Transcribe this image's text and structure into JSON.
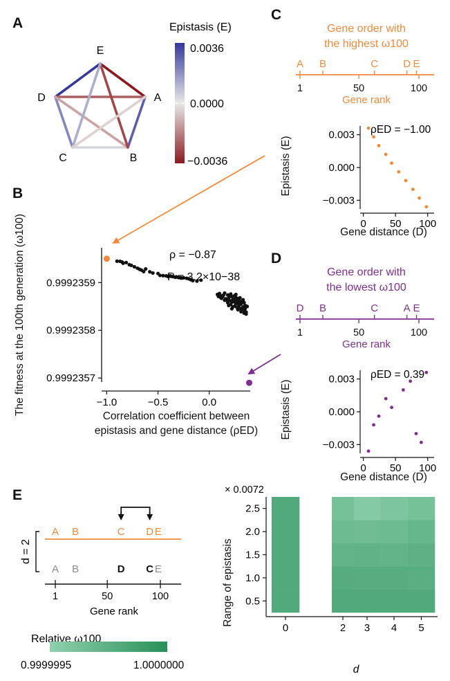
{
  "panels": {
    "A": "A",
    "B": "B",
    "C": "C",
    "D": "D",
    "E": "E"
  },
  "colors": {
    "orange": "#f08a3a",
    "purple": "#7e2f8e",
    "black": "#111111",
    "gray": "#8a8a8a",
    "epi_pos": "#34399a",
    "epi_mid": "#e8e8e8",
    "epi_neg": "#8b1a1e",
    "green_low": "#8fd1ad",
    "green_high": "#2a8f5a"
  },
  "panel_a": {
    "colorbar_title": "Epistasis (E)",
    "colorbar_ticks": [
      "0.0036",
      "0.0000",
      "−0.0036"
    ],
    "nodes": [
      "A",
      "B",
      "C",
      "D",
      "E"
    ],
    "edges": [
      {
        "from": "E",
        "to": "A",
        "E": -0.0036
      },
      {
        "from": "D",
        "to": "E",
        "E": 0.0036
      },
      {
        "from": "A",
        "to": "B",
        "E": 0.0028
      },
      {
        "from": "C",
        "to": "D",
        "E": 0.002
      },
      {
        "from": "B",
        "to": "C",
        "E": 0.0004
      },
      {
        "from": "D",
        "to": "A",
        "E": -0.0024
      },
      {
        "from": "D",
        "to": "B",
        "E": -0.0012
      },
      {
        "from": "E",
        "to": "B",
        "E": -0.0028
      },
      {
        "from": "E",
        "to": "C",
        "E": 0.0012
      },
      {
        "from": "A",
        "to": "C",
        "E": -0.0004
      }
    ]
  },
  "panel_b": {
    "ylabel": "The fitness at the 100th generation (ω100)",
    "xlabel_line1": "Correlation coefficient between",
    "xlabel_line2": "epistasis and gene distance (ρED)",
    "rho_text": "ρ = −0.87",
    "p_text": "P = 3.2×10−38",
    "xticks": [
      "−1.0",
      "−0.5",
      "0.0"
    ],
    "yticks": [
      "0.9992359",
      "0.9992358",
      "0.9992357"
    ]
  },
  "panel_c": {
    "title_line1": "Gene order with",
    "title_line2": "the highest ω100",
    "genes": [
      {
        "name": "A",
        "rank": 1
      },
      {
        "name": "B",
        "rank": 20
      },
      {
        "name": "C",
        "rank": 63
      },
      {
        "name": "D",
        "rank": 90
      },
      {
        "name": "E",
        "rank": 98
      }
    ],
    "rank_ticks": [
      "1",
      "50",
      "100"
    ],
    "rank_label": "Gene rank",
    "rho_text": "ρED = −1.00",
    "ylabel": "Epistasis (E)",
    "xlabel": "Gene distance (D)",
    "yticks": [
      "0.003",
      "0.000",
      "−0.003"
    ],
    "xticks": [
      "0",
      "50",
      "100"
    ]
  },
  "panel_d": {
    "title_line1": "Gene order with",
    "title_line2": "the lowest ω100",
    "genes": [
      {
        "name": "D",
        "rank": 1
      },
      {
        "name": "B",
        "rank": 20
      },
      {
        "name": "C",
        "rank": 63
      },
      {
        "name": "A",
        "rank": 90
      },
      {
        "name": "E",
        "rank": 98
      }
    ],
    "rank_ticks": [
      "1",
      "50",
      "100"
    ],
    "rank_label": "Gene rank",
    "rho_text": "ρED = 0.39",
    "ylabel": "Epistasis (E)",
    "xlabel": "Gene distance (D)",
    "yticks": [
      "0.003",
      "0.000",
      "−0.003"
    ],
    "xticks": [
      "0",
      "50",
      "100"
    ]
  },
  "panel_e": {
    "d_label": "d = 2",
    "top_genes": [
      {
        "name": "A",
        "rank": 1
      },
      {
        "name": "B",
        "rank": 20
      },
      {
        "name": "C",
        "rank": 63
      },
      {
        "name": "D",
        "rank": 90
      },
      {
        "name": "E",
        "rank": 98
      }
    ],
    "bottom_genes": [
      {
        "name": "A",
        "rank": 1,
        "bold": false
      },
      {
        "name": "B",
        "rank": 20,
        "bold": false
      },
      {
        "name": "D",
        "rank": 63,
        "bold": true
      },
      {
        "name": "C",
        "rank": 90,
        "bold": true
      },
      {
        "name": "E",
        "rank": 98,
        "bold": false
      }
    ],
    "rank_ticks": [
      "1",
      "50",
      "100"
    ],
    "rank_label": "Gene rank",
    "legend_title": "Relative ω100",
    "legend_min": "0.9999995",
    "legend_max": "1.0000000",
    "heatmap_multiplier": "× 0.0072",
    "heatmap_ylabel": "Range of epistasis",
    "heatmap_xlabel": "d",
    "heatmap_yticks": [
      "2.5",
      "2.0",
      "1.5",
      "1.0",
      "0.5"
    ],
    "heatmap_xticks": [
      "0",
      "2",
      "3",
      "4",
      "5"
    ]
  },
  "chart_data": [
    {
      "id": "B",
      "type": "scatter",
      "xlim": [
        -1.05,
        0.4
      ],
      "ylim": [
        0.99923568,
        0.99923597
      ],
      "summary": {
        "rho": -0.87,
        "P": 3.2e-38
      },
      "highlight": [
        {
          "label": "highest",
          "x": -1.0,
          "y": 0.99923595,
          "color": "orange"
        },
        {
          "label": "lowest",
          "x": 0.39,
          "y": 0.99923569,
          "color": "purple"
        }
      ],
      "points": [
        [
          -0.9,
          0.9992359448
        ],
        [
          -0.87,
          0.9992359445
        ],
        [
          -0.85,
          0.999235943
        ],
        [
          -0.84,
          0.9992359405
        ],
        [
          -0.81,
          0.999235942
        ],
        [
          -0.78,
          0.9992359375
        ],
        [
          -0.76,
          0.999235936
        ],
        [
          -0.73,
          0.999235933
        ],
        [
          -0.7,
          0.99923593
        ],
        [
          -0.68,
          0.9992359278
        ],
        [
          -0.66,
          0.999235926
        ],
        [
          -0.64,
          0.999235923
        ],
        [
          -0.62,
          0.9992359285
        ],
        [
          -0.58,
          0.9992359225
        ],
        [
          -0.55,
          0.99923592
        ],
        [
          -0.5,
          0.999235919
        ],
        [
          -0.48,
          0.999235915
        ],
        [
          -0.45,
          0.9992359145
        ],
        [
          -0.42,
          0.999235914
        ],
        [
          -0.4,
          0.9992359135
        ],
        [
          -0.38,
          0.999235914
        ],
        [
          -0.35,
          0.9992359123
        ],
        [
          -0.32,
          0.999235912
        ],
        [
          -0.3,
          0.9992359105
        ],
        [
          -0.28,
          0.99923591
        ],
        [
          -0.25,
          0.99923591
        ],
        [
          -0.22,
          0.999235909
        ],
        [
          -0.2,
          0.999235908
        ],
        [
          -0.18,
          0.999235906
        ],
        [
          -0.16,
          0.999235904
        ],
        [
          -0.12,
          0.999235903
        ],
        [
          -0.08,
          0.999235905
        ],
        [
          -0.4,
          0.9992359125
        ],
        [
          -0.37,
          0.999235913
        ],
        [
          -0.33,
          0.999235911
        ],
        [
          -0.27,
          0.9992359095
        ],
        [
          0.08,
          0.999235875
        ],
        [
          0.1,
          0.999235877
        ],
        [
          0.12,
          0.999235872
        ],
        [
          0.13,
          0.99923587
        ],
        [
          0.15,
          0.999235878
        ],
        [
          0.16,
          0.999235866
        ],
        [
          0.18,
          0.999235874
        ],
        [
          0.19,
          0.999235868
        ],
        [
          0.2,
          0.999235862
        ],
        [
          0.21,
          0.999235876
        ],
        [
          0.22,
          0.999235871
        ],
        [
          0.23,
          0.999235865
        ],
        [
          0.24,
          0.99923586
        ],
        [
          0.25,
          0.999235873
        ],
        [
          0.26,
          0.999235869
        ],
        [
          0.27,
          0.999235863
        ],
        [
          0.28,
          0.999235857
        ],
        [
          0.29,
          0.999235867
        ],
        [
          0.3,
          0.999235861
        ],
        [
          0.31,
          0.999235855
        ],
        [
          0.33,
          0.999235864
        ],
        [
          0.34,
          0.999235858
        ],
        [
          0.35,
          0.999235852
        ],
        [
          0.11,
          0.999235869
        ],
        [
          0.14,
          0.999235874
        ],
        [
          0.17,
          0.999235863
        ],
        [
          0.2,
          0.999235871
        ],
        [
          0.22,
          0.999235859
        ],
        [
          0.24,
          0.999235866
        ],
        [
          0.26,
          0.999235875
        ],
        [
          0.28,
          0.999235862
        ],
        [
          0.3,
          0.999235868
        ],
        [
          0.32,
          0.999235859
        ],
        [
          0.18,
          0.999235858
        ],
        [
          0.21,
          0.999235854
        ],
        [
          0.25,
          0.999235851
        ],
        [
          0.27,
          0.999235848
        ],
        [
          0.3,
          0.999235846
        ],
        [
          0.32,
          0.999235844
        ],
        [
          0.34,
          0.999235842
        ],
        [
          0.36,
          0.999235838
        ],
        [
          0.23,
          0.999235849
        ],
        [
          0.29,
          0.999235852
        ],
        [
          0.33,
          0.999235849
        ],
        [
          0.35,
          0.999235845
        ],
        [
          0.28,
          0.999235843
        ],
        [
          0.31,
          0.999235839
        ],
        [
          0.34,
          0.999235836
        ],
        [
          0.36,
          0.999235834
        ],
        [
          0.26,
          0.999235856
        ],
        [
          0.19,
          0.999235852
        ],
        [
          0.15,
          0.999235863
        ],
        [
          0.37,
          0.99923585
        ],
        [
          0.22,
          0.999235845
        ],
        [
          0.12,
          0.999235867
        ],
        [
          0.09,
          0.999235871
        ]
      ]
    },
    {
      "id": "C",
      "type": "scatter",
      "xlim": [
        -5,
        110
      ],
      "ylim": [
        -0.0038,
        0.0038
      ],
      "points": [
        [
          8,
          0.0036
        ],
        [
          16,
          0.0028
        ],
        [
          24,
          0.002
        ],
        [
          35,
          0.0012
        ],
        [
          44,
          0.0004
        ],
        [
          55,
          -0.0004
        ],
        [
          66,
          -0.0012
        ],
        [
          77,
          -0.002
        ],
        [
          87,
          -0.0028
        ],
        [
          98,
          -0.0036
        ]
      ]
    },
    {
      "id": "D",
      "type": "scatter",
      "xlim": [
        -5,
        110
      ],
      "ylim": [
        -0.0038,
        0.0038
      ],
      "points": [
        [
          8,
          -0.0036
        ],
        [
          16,
          -0.0012
        ],
        [
          24,
          -0.0004
        ],
        [
          35,
          0.0012
        ],
        [
          44,
          0.0004
        ],
        [
          62,
          0.002
        ],
        [
          73,
          0.0028
        ],
        [
          82,
          -0.002
        ],
        [
          90,
          -0.0028
        ],
        [
          98,
          0.0036
        ]
      ]
    },
    {
      "id": "E",
      "type": "heatmap",
      "x": [
        0,
        2,
        3,
        4,
        5
      ],
      "y": [
        0.5,
        1.0,
        1.5,
        2.0,
        2.5
      ],
      "value_range": [
        0.9999995,
        1.0
      ],
      "values": [
        [
          0.9999998,
          0.9999998,
          0.9999998,
          0.9999998,
          0.9999998
        ],
        [
          0.9999998,
          0.99999978,
          0.99999977,
          0.99999977,
          0.99999976
        ],
        [
          0.9999998,
          0.99999972,
          0.99999973,
          0.99999972,
          0.99999974
        ],
        [
          0.9999998,
          0.99999967,
          0.99999966,
          0.99999967,
          0.9999997
        ],
        [
          0.9999998,
          0.99999963,
          0.99999955,
          0.99999959,
          0.99999962
        ]
      ]
    }
  ]
}
